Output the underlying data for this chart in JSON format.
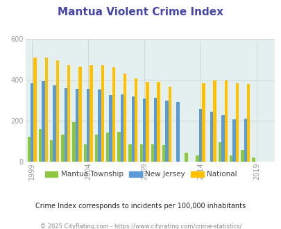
{
  "title": "Mantua Violent Crime Index",
  "title_color": "#4444aa",
  "subtitle": "Crime Index corresponds to incidents per 100,000 inhabitants",
  "footer": "© 2025 CityRating.com - https://www.cityrating.com/crime-statistics/",
  "years": [
    1999,
    2000,
    2001,
    2002,
    2003,
    2004,
    2005,
    2006,
    2007,
    2008,
    2009,
    2010,
    2011,
    2012,
    2013,
    2014,
    2015,
    2016,
    2017,
    2018,
    2019,
    2020
  ],
  "mantua": [
    120,
    158,
    105,
    130,
    192,
    85,
    130,
    140,
    145,
    85,
    85,
    83,
    80,
    0,
    42,
    30,
    0,
    95,
    28,
    55,
    20,
    0
  ],
  "nj": [
    382,
    393,
    374,
    360,
    355,
    354,
    353,
    325,
    328,
    318,
    308,
    313,
    297,
    290,
    0,
    258,
    244,
    228,
    207,
    208,
    0,
    0
  ],
  "national": [
    508,
    508,
    495,
    472,
    464,
    472,
    470,
    460,
    430,
    405,
    390,
    390,
    365,
    0,
    0,
    384,
    398,
    396,
    384,
    378,
    0,
    0
  ],
  "color_mantua": "#8dc63f",
  "color_nj": "#5b9bd5",
  "color_national": "#ffc000",
  "bg_color": "#e4f0f0",
  "ylim": [
    0,
    600
  ],
  "yticks": [
    0,
    200,
    400,
    600
  ],
  "show_years": [
    1999,
    2004,
    2009,
    2014,
    2019
  ],
  "legend_labels": [
    "Mantua Township",
    "New Jersey",
    "National"
  ],
  "subtitle_color": "#222222",
  "footer_color": "#888888",
  "tick_color": "#999999"
}
